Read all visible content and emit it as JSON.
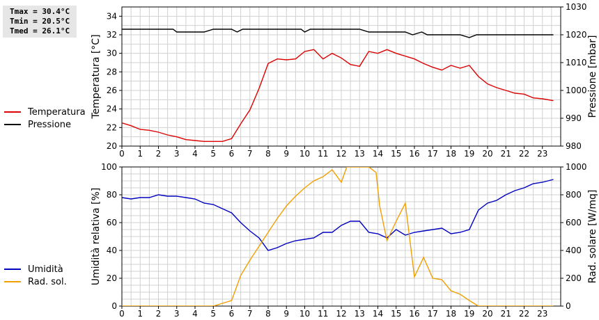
{
  "stats": [
    "Tmax = 30.4°C",
    "Tmin = 20.5°C",
    "Tmed = 26.1°C"
  ],
  "colors": {
    "temperature": "#dd0000",
    "pressure": "#000000",
    "humidity": "#0000c0",
    "solar": "#f0a000",
    "grid": "#d0d0d0"
  },
  "chart_data": [
    {
      "type": "line",
      "ylabel": "Temperatura [°C]",
      "y2label": "Pressione [mbar]",
      "xlim": [
        0,
        24
      ],
      "ylim": [
        20,
        35
      ],
      "y2lim": [
        980,
        1030
      ],
      "xticks": [
        "0",
        "1",
        "2",
        "3",
        "4",
        "5",
        "6",
        "7",
        "8",
        "9",
        "10",
        "11",
        "12",
        "13",
        "14",
        "15",
        "16",
        "17",
        "18",
        "19",
        "20",
        "21",
        "22",
        "23"
      ],
      "yticks": [
        "20",
        "22",
        "24",
        "26",
        "28",
        "30",
        "32",
        "34"
      ],
      "y2ticks": [
        "980",
        "990",
        "1000",
        "1010",
        "1020",
        "1030"
      ],
      "grid": true,
      "legend_position": "left",
      "series": [
        {
          "name": "Temperatura",
          "axis": "left",
          "x": [
            0,
            0.5,
            1,
            1.5,
            2,
            2.5,
            3,
            3.5,
            4,
            4.5,
            5,
            5.5,
            6,
            6.5,
            7,
            7.5,
            8,
            8.5,
            9,
            9.5,
            10,
            10.5,
            11,
            11.5,
            12,
            12.5,
            13,
            13.5,
            14,
            14.5,
            15,
            15.5,
            16,
            16.5,
            17,
            17.5,
            18,
            18.5,
            19,
            19.5,
            20,
            20.5,
            21,
            21.5,
            22,
            22.5,
            23,
            23.6
          ],
          "y": [
            22.5,
            22.2,
            21.8,
            21.7,
            21.5,
            21.2,
            21.0,
            20.7,
            20.6,
            20.5,
            20.5,
            20.5,
            20.8,
            22.4,
            23.9,
            26.2,
            28.9,
            29.4,
            29.3,
            29.4,
            30.2,
            30.4,
            29.4,
            30.0,
            29.5,
            28.8,
            28.6,
            30.2,
            30.0,
            30.4,
            30.0,
            29.7,
            29.4,
            28.9,
            28.5,
            28.2,
            28.7,
            28.4,
            28.7,
            27.5,
            26.7,
            26.3,
            26.0,
            25.7,
            25.6,
            25.2,
            25.1,
            24.9
          ]
        },
        {
          "name": "Pressione",
          "axis": "right",
          "x": [
            0,
            0.5,
            1,
            1.5,
            2,
            2.5,
            2.8,
            3,
            3.5,
            4,
            4.5,
            5,
            5.5,
            6,
            6.3,
            6.6,
            7,
            7.5,
            8,
            8.5,
            9,
            9.5,
            9.8,
            10,
            10.3,
            10.6,
            11,
            11.5,
            12,
            12.5,
            13,
            13.5,
            14,
            14.5,
            15,
            15.5,
            15.9,
            16.4,
            16.7,
            17,
            17.5,
            18,
            18.5,
            19,
            19.4,
            20,
            20.5,
            21,
            21.5,
            22,
            22.5,
            23,
            23.6
          ],
          "y": [
            1022,
            1022,
            1022,
            1022,
            1022,
            1022,
            1022,
            1021,
            1021,
            1021,
            1021,
            1022,
            1022,
            1022,
            1021,
            1022,
            1022,
            1022,
            1022,
            1022,
            1022,
            1022,
            1022,
            1021,
            1022,
            1022,
            1022,
            1022,
            1022,
            1022,
            1022,
            1021,
            1021,
            1021,
            1021,
            1021,
            1020,
            1021,
            1020,
            1020,
            1020,
            1020,
            1020,
            1019,
            1020,
            1020,
            1020,
            1020,
            1020,
            1020,
            1020,
            1020,
            1020
          ]
        }
      ]
    },
    {
      "type": "line",
      "ylabel": "Umidità relativa [%]",
      "y2label": "Rad. solare [W/mq]",
      "xlim": [
        0,
        24
      ],
      "ylim": [
        0,
        100
      ],
      "y2lim": [
        0,
        1000
      ],
      "xticks": [
        "0",
        "1",
        "2",
        "3",
        "4",
        "5",
        "6",
        "7",
        "8",
        "9",
        "10",
        "11",
        "12",
        "13",
        "14",
        "15",
        "16",
        "17",
        "18",
        "19",
        "20",
        "21",
        "22",
        "23"
      ],
      "yticks": [
        "0",
        "20",
        "40",
        "60",
        "80",
        "100"
      ],
      "y2ticks": [
        "0",
        "200",
        "400",
        "600",
        "800",
        "1000"
      ],
      "grid": true,
      "legend_position": "left",
      "series": [
        {
          "name": "Umidità",
          "axis": "left",
          "x": [
            0,
            0.5,
            1,
            1.5,
            2,
            2.5,
            3,
            3.5,
            4,
            4.5,
            5,
            5.5,
            6,
            6.5,
            7,
            7.5,
            8,
            8.5,
            9,
            9.5,
            10,
            10.5,
            11,
            11.5,
            12,
            12.5,
            13,
            13.5,
            14,
            14.5,
            15,
            15.5,
            16,
            16.5,
            17,
            17.5,
            18,
            18.5,
            19,
            19.5,
            20,
            20.5,
            21,
            21.5,
            22,
            22.5,
            23,
            23.6
          ],
          "y": [
            78,
            77,
            78,
            78,
            80,
            79,
            79,
            78,
            77,
            74,
            73,
            70,
            67,
            60,
            54,
            49,
            40,
            42,
            45,
            47,
            48,
            49,
            53,
            53,
            58,
            61,
            61,
            53,
            52,
            49,
            55,
            51,
            53,
            54,
            55,
            56,
            52,
            53,
            55,
            69,
            74,
            76,
            80,
            83,
            85,
            88,
            89,
            91
          ]
        },
        {
          "name": "Rad. sol.",
          "axis": "right",
          "x": [
            0,
            1,
            2,
            3,
            4,
            5,
            5.5,
            6,
            6.5,
            7,
            7.5,
            8,
            8.5,
            9,
            9.5,
            10,
            10.5,
            11,
            11.5,
            12,
            12.3,
            12.7,
            13,
            13.5,
            13.9,
            14.1,
            14.5,
            15,
            15.5,
            16,
            16.5,
            17,
            17.5,
            18,
            18.5,
            19,
            19.5,
            20,
            21,
            22,
            23,
            23.6
          ],
          "y": [
            0,
            0,
            0,
            0,
            0,
            0,
            20,
            40,
            220,
            330,
            430,
            530,
            630,
            720,
            790,
            850,
            900,
            930,
            980,
            890,
            1000,
            1000,
            1000,
            1000,
            960,
            720,
            470,
            610,
            740,
            210,
            350,
            200,
            190,
            110,
            85,
            40,
            0,
            0,
            0,
            0,
            0,
            0
          ]
        }
      ]
    }
  ]
}
